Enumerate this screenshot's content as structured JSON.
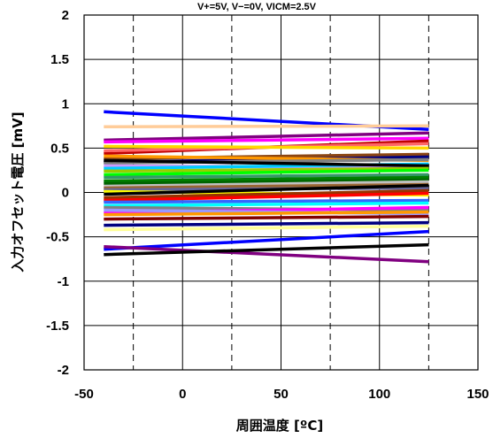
{
  "chart_data": {
    "type": "line",
    "title": "V+=5V, V−=0V, VICM=2.5V",
    "xlabel": "周囲温度 [ºC]",
    "ylabel": "入力オフセット電圧 [mV]",
    "xlim": [
      -50,
      150
    ],
    "ylim": [
      -2,
      2
    ],
    "x_ticks": [
      "-50",
      "0",
      "50",
      "100",
      "150"
    ],
    "y_ticks": [
      "2",
      "1.5",
      "1",
      "0.5",
      "0",
      "-0.5",
      "-1",
      "-1.5",
      "-2"
    ],
    "x_ticks_values": [
      -50,
      0,
      50,
      100,
      150
    ],
    "y_ticks_values": [
      2,
      1.5,
      1,
      0.5,
      0,
      -0.5,
      -1,
      -1.5,
      -2
    ],
    "dashed_gridlines_x": [
      -25,
      25,
      75,
      125
    ],
    "grid": true,
    "x": [
      -40,
      125
    ],
    "series": [
      {
        "color": "#0000ff",
        "values": [
          0.91,
          0.71
        ]
      },
      {
        "color": "#ffcc99",
        "values": [
          0.74,
          0.75
        ]
      },
      {
        "color": "#800080",
        "values": [
          0.59,
          0.67
        ]
      },
      {
        "color": "#ff00ff",
        "values": [
          0.57,
          0.61
        ]
      },
      {
        "color": "#c00000",
        "values": [
          0.44,
          0.58
        ]
      },
      {
        "color": "#ff6666",
        "values": [
          0.47,
          0.55
        ]
      },
      {
        "color": "#ffd700",
        "values": [
          0.52,
          0.5
        ]
      },
      {
        "color": "#8b4513",
        "values": [
          0.38,
          0.43
        ]
      },
      {
        "color": "#000080",
        "values": [
          0.34,
          0.4
        ]
      },
      {
        "color": "#ff9900",
        "values": [
          0.41,
          0.36
        ]
      },
      {
        "color": "#808080",
        "values": [
          0.33,
          0.37
        ]
      },
      {
        "color": "#cc99ff",
        "values": [
          0.3,
          0.28
        ]
      },
      {
        "color": "#00ccff",
        "values": [
          0.27,
          0.32
        ]
      },
      {
        "color": "#000000",
        "values": [
          0.36,
          0.3
        ]
      },
      {
        "color": "#99cc00",
        "values": [
          0.24,
          0.27
        ]
      },
      {
        "color": "#00ff00",
        "values": [
          0.2,
          0.25
        ]
      },
      {
        "color": "#339966",
        "values": [
          0.17,
          0.2
        ]
      },
      {
        "color": "#008000",
        "values": [
          0.13,
          0.17
        ]
      },
      {
        "color": "#006400",
        "values": [
          0.1,
          0.14
        ]
      },
      {
        "color": "#c0c0c0",
        "values": [
          0.07,
          0.12
        ]
      },
      {
        "color": "#996633",
        "values": [
          0.05,
          0.09
        ]
      },
      {
        "color": "#666699",
        "values": [
          0.03,
          0.05
        ]
      },
      {
        "color": "#ffff00",
        "values": [
          0.01,
          -0.03
        ]
      },
      {
        "color": "#000000",
        "values": [
          -0.02,
          0.08
        ]
      },
      {
        "color": "#993300",
        "values": [
          -0.06,
          0.02
        ]
      },
      {
        "color": "#ff0000",
        "values": [
          -0.09,
          -0.01
        ]
      },
      {
        "color": "#3366ff",
        "values": [
          -0.11,
          -0.09
        ]
      },
      {
        "color": "#00ffff",
        "values": [
          -0.15,
          -0.12
        ]
      },
      {
        "color": "#808080",
        "values": [
          -0.17,
          -0.2
        ]
      },
      {
        "color": "#ff00ff",
        "values": [
          -0.23,
          -0.17
        ]
      },
      {
        "color": "#9999ff",
        "values": [
          -0.2,
          -0.24
        ]
      },
      {
        "color": "#ff9900",
        "values": [
          -0.25,
          -0.22
        ]
      },
      {
        "color": "#800000",
        "values": [
          -0.3,
          -0.27
        ]
      },
      {
        "color": "#000080",
        "values": [
          -0.37,
          -0.34
        ]
      },
      {
        "color": "#ffff99",
        "values": [
          -0.42,
          -0.38
        ]
      },
      {
        "color": "#0000ff",
        "values": [
          -0.64,
          -0.44
        ]
      },
      {
        "color": "#800080",
        "values": [
          -0.61,
          -0.78
        ]
      },
      {
        "color": "#000000",
        "values": [
          -0.7,
          -0.59
        ]
      }
    ]
  }
}
